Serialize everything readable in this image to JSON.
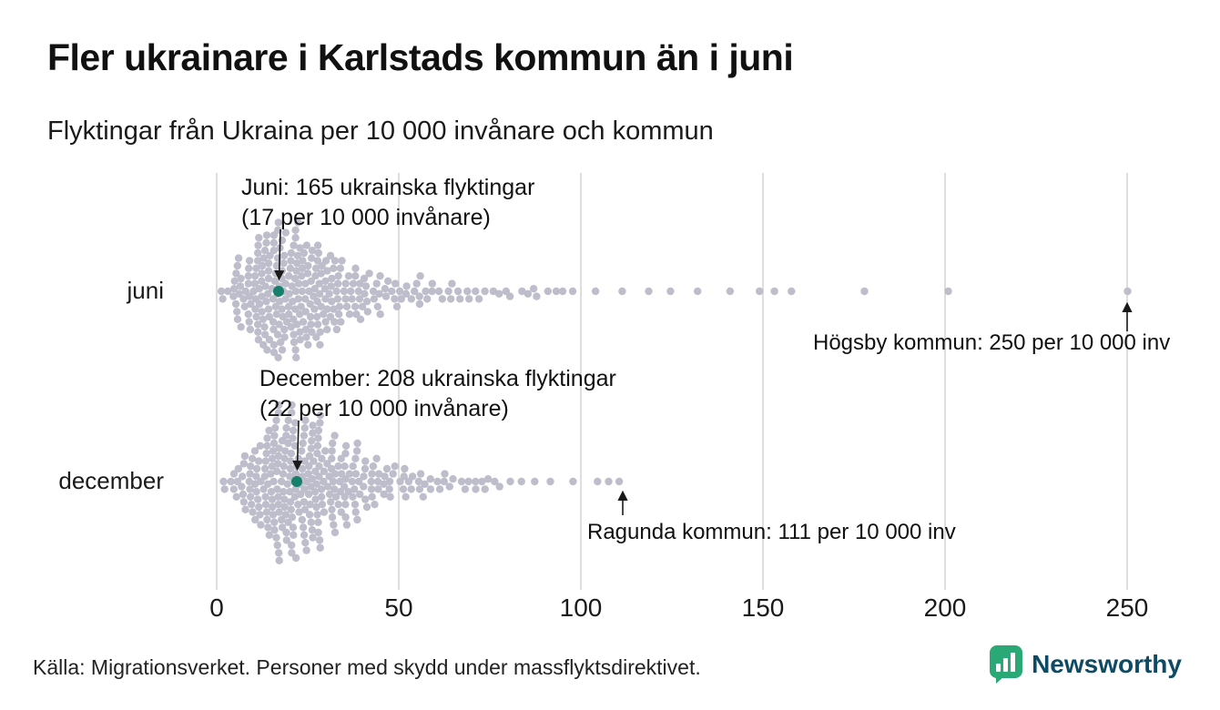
{
  "title": "Fler ukrainare i Karlstads kommun än i juni",
  "subtitle": "Flyktingar från Ukraina per 10 000 invånare och kommun",
  "footer": {
    "source": "Källa: Migrationsverket. Personer med skydd under massflyktsdirektivet."
  },
  "logo": {
    "text": "Newsworthy"
  },
  "colors": {
    "dot": "#bdbdcb",
    "highlight": "#16806c",
    "grid": "#cccccc",
    "arrow": "#1a1a1a",
    "logo_teal": "#2aa876",
    "logo_text": "#0e4a63"
  },
  "chart_data": {
    "type": "beeswarm",
    "title": "Fler ukrainare i Karlstads kommun än i juni",
    "subtitle": "Flyktingar från Ukraina per 10 000 invånare och kommun",
    "xlabel": "per 10 000 invånare",
    "x_ticks": [
      0,
      50,
      100,
      150,
      200,
      250
    ],
    "xlim": [
      0,
      250
    ],
    "grid": true,
    "rows": [
      {
        "label": "juni",
        "highlight": {
          "value": 17,
          "annotation_line1": "Juni: 165 ukrainska flyktingar",
          "annotation_line2": "(17 per 10 000 invånare)"
        },
        "max_annotation": {
          "value": 250,
          "text": "Högsby kommun: 250 per 10 000 inv"
        },
        "distribution": [
          {
            "x": 3,
            "n": 5
          },
          {
            "x": 7,
            "n": 20
          },
          {
            "x": 12,
            "n": 38
          },
          {
            "x": 17,
            "n": 46
          },
          {
            "x": 22,
            "n": 42
          },
          {
            "x": 27,
            "n": 34
          },
          {
            "x": 32,
            "n": 25
          },
          {
            "x": 37,
            "n": 18
          },
          {
            "x": 42,
            "n": 13
          },
          {
            "x": 47,
            "n": 9
          },
          {
            "x": 52,
            "n": 7
          },
          {
            "x": 57,
            "n": 6
          },
          {
            "x": 62,
            "n": 5
          },
          {
            "x": 67,
            "n": 4
          },
          {
            "x": 72,
            "n": 4
          },
          {
            "x": 77,
            "n": 3
          },
          {
            "x": 82,
            "n": 2
          },
          {
            "x": 87,
            "n": 3
          },
          {
            "x": 92,
            "n": 2
          },
          {
            "x": 97,
            "n": 2
          },
          {
            "x": 105,
            "n": 1
          },
          {
            "x": 112,
            "n": 1
          },
          {
            "x": 119,
            "n": 1
          },
          {
            "x": 125,
            "n": 1
          },
          {
            "x": 132,
            "n": 1
          },
          {
            "x": 140,
            "n": 1
          },
          {
            "x": 149,
            "n": 1
          },
          {
            "x": 153,
            "n": 1
          },
          {
            "x": 157,
            "n": 1
          },
          {
            "x": 177,
            "n": 1
          },
          {
            "x": 200,
            "n": 1
          },
          {
            "x": 250,
            "n": 1
          }
        ]
      },
      {
        "label": "december",
        "highlight": {
          "value": 22,
          "annotation_line1": "December: 208 ukrainska flyktingar",
          "annotation_line2": "(22 per 10 000 invånare)"
        },
        "max_annotation": {
          "value": 111,
          "text": "Ragunda kommun: 111 per 10 000 inv"
        },
        "distribution": [
          {
            "x": 3,
            "n": 3
          },
          {
            "x": 7,
            "n": 15
          },
          {
            "x": 12,
            "n": 32
          },
          {
            "x": 17,
            "n": 46
          },
          {
            "x": 22,
            "n": 48
          },
          {
            "x": 27,
            "n": 40
          },
          {
            "x": 32,
            "n": 30
          },
          {
            "x": 37,
            "n": 22
          },
          {
            "x": 42,
            "n": 15
          },
          {
            "x": 47,
            "n": 11
          },
          {
            "x": 52,
            "n": 8
          },
          {
            "x": 57,
            "n": 7
          },
          {
            "x": 62,
            "n": 5
          },
          {
            "x": 67,
            "n": 4
          },
          {
            "x": 72,
            "n": 4
          },
          {
            "x": 77,
            "n": 3
          },
          {
            "x": 82,
            "n": 2
          },
          {
            "x": 87,
            "n": 1
          },
          {
            "x": 92,
            "n": 1
          },
          {
            "x": 97,
            "n": 1
          },
          {
            "x": 104,
            "n": 1
          },
          {
            "x": 107,
            "n": 1
          },
          {
            "x": 111,
            "n": 1
          }
        ]
      }
    ]
  }
}
